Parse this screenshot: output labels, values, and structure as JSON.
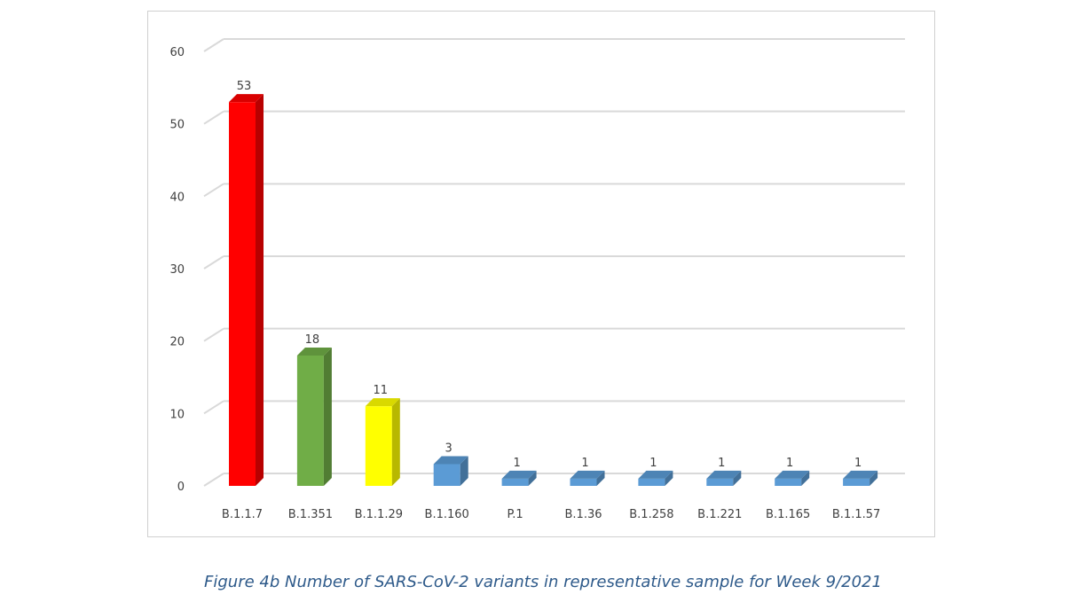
{
  "chart_data": {
    "type": "bar",
    "categories": [
      "B.1.1.7",
      "B.1.351",
      "B.1.1.29",
      "B.1.160",
      "P.1",
      "B.1.36",
      "B.1.258",
      "B.1.221",
      "B.1.165",
      "B.1.1.57"
    ],
    "values": [
      53,
      18,
      11,
      3,
      1,
      1,
      1,
      1,
      1,
      1
    ],
    "data_labels": [
      "53",
      "18",
      "11",
      "3",
      "1",
      "1",
      "1",
      "1",
      "1",
      "1"
    ],
    "y_ticks": [
      "0",
      "10",
      "20",
      "30",
      "40",
      "50",
      "60"
    ],
    "ylim": [
      0,
      60
    ],
    "grid": true,
    "style": "3d-column",
    "colors": {
      "B.1.1.7": "#ff0000",
      "B.1.351": "#70ad47",
      "B.1.1.29": "#ffff00",
      "other": "#5b9bd5"
    },
    "title": "",
    "xlabel": "",
    "ylabel": ""
  },
  "caption": "Figure 4b Number of SARS-CoV-2 variants in representative sample for Week 9/2021"
}
